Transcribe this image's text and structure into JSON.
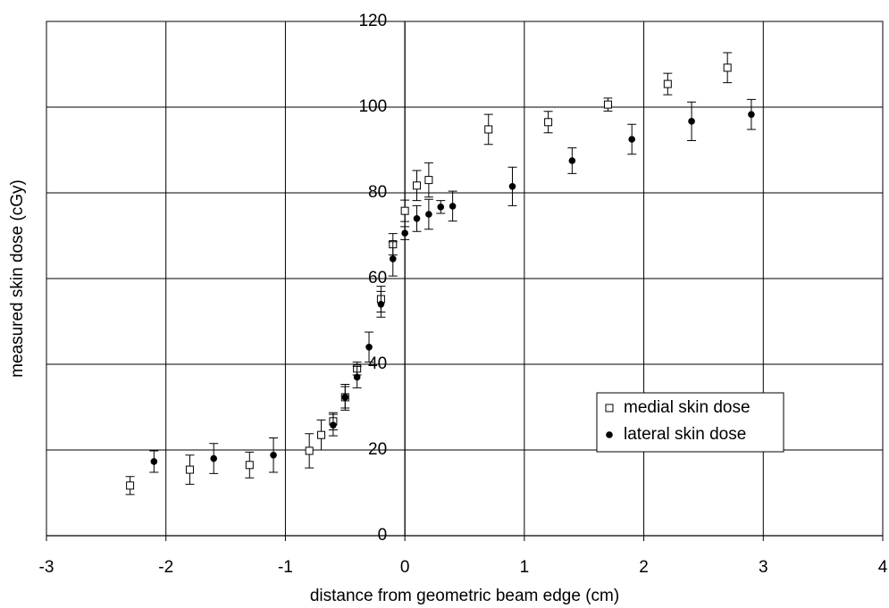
{
  "chart_data": {
    "type": "scatter",
    "xlabel": "distance from geometric beam edge (cm)",
    "ylabel": "measured skin dose (cGy)",
    "xlim": [
      -3,
      4
    ],
    "xticks": [
      -3,
      -2,
      -1,
      0,
      1,
      2,
      3,
      4
    ],
    "ylim": [
      0,
      120
    ],
    "yticks": [
      0,
      20,
      40,
      60,
      80,
      100,
      120
    ],
    "grid": true,
    "legend": "lower right",
    "series": [
      {
        "name": "medial skin dose",
        "color": "#000000",
        "marker": "open-square",
        "x": [
          -2.3,
          -1.8,
          -1.3,
          -0.8,
          -0.7,
          -0.6,
          -0.5,
          -0.4,
          -0.2,
          -0.1,
          0,
          0.1,
          0.2,
          0.7,
          1.2,
          1.7,
          2.2,
          2.7
        ],
        "values": [
          11.7,
          15.4,
          16.5,
          19.8,
          23.5,
          26.7,
          32.3,
          39,
          55.2,
          68,
          75.8,
          81.7,
          83,
          94.8,
          96.5,
          100.6,
          105.4,
          109.2
        ],
        "errors": [
          2.1,
          3.4,
          3,
          4,
          3.5,
          2,
          3,
          1.5,
          3,
          2.5,
          2.5,
          3.5,
          4,
          3.5,
          2.5,
          1.5,
          2.5,
          3.5
        ]
      },
      {
        "name": "lateral skin dose",
        "color": "#000000",
        "marker": "filled-circle",
        "x": [
          -2.1,
          -1.6,
          -1.1,
          -0.6,
          -0.5,
          -0.4,
          -0.3,
          -0.2,
          -0.1,
          0,
          0.1,
          0.2,
          0.3,
          0.4,
          0.9,
          1.4,
          1.9,
          2.4,
          2.9
        ],
        "values": [
          17.3,
          18,
          18.8,
          25.8,
          32.3,
          37,
          44,
          54,
          64.6,
          70.6,
          74,
          75,
          76.7,
          76.9,
          81.5,
          87.5,
          92.5,
          96.7,
          98.3
        ],
        "errors": [
          2.5,
          3.5,
          4,
          2.5,
          2.5,
          2.5,
          3.5,
          3,
          4,
          1.5,
          3,
          3.5,
          1.5,
          3.5,
          4.5,
          3,
          3.5,
          4.5,
          3.5
        ]
      }
    ]
  }
}
